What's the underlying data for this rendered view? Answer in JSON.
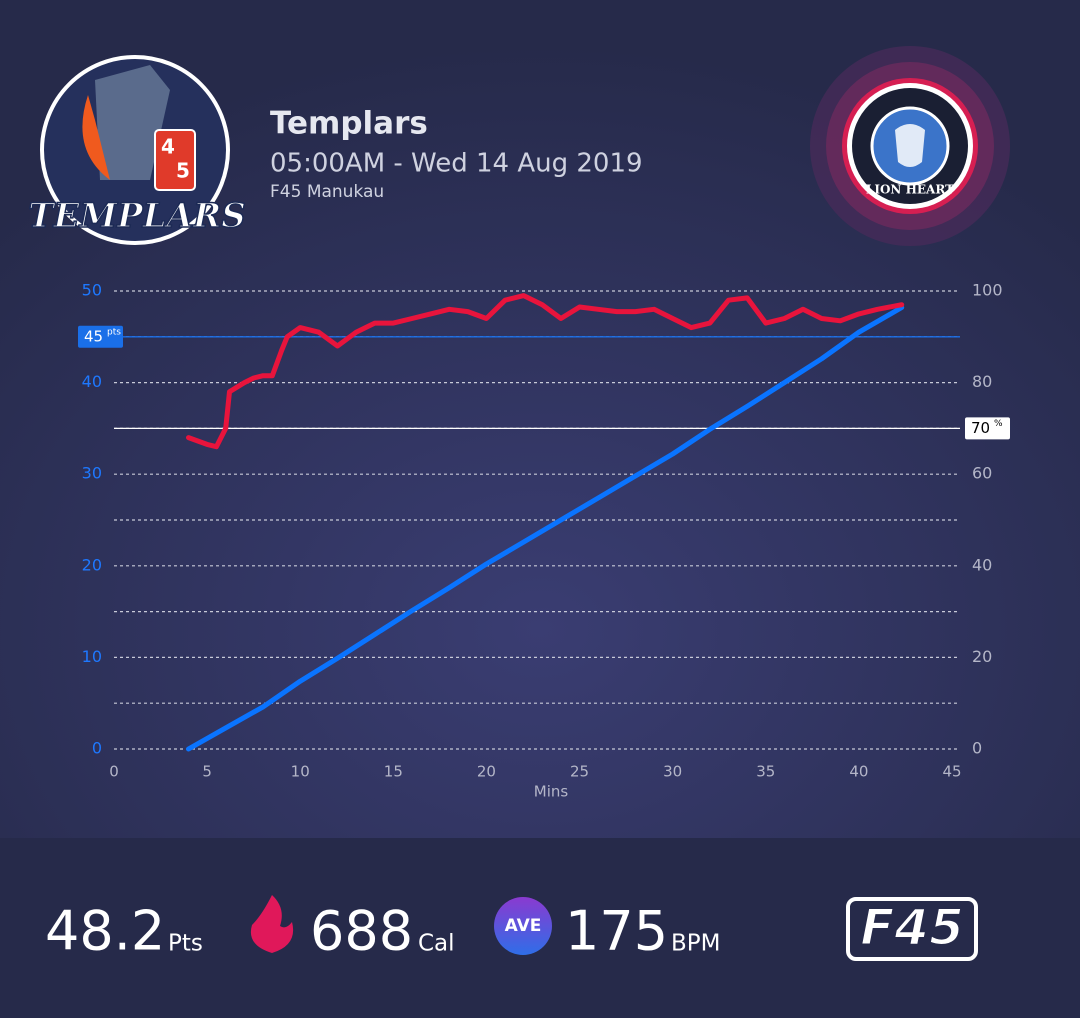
{
  "header": {
    "title": "Templars",
    "datetime": "05:00AM - Wed 14 Aug 2019",
    "location": "F45 Manukau",
    "team_logo_text": "TEMPLARS",
    "team_logo_numbers": [
      "4",
      "5"
    ],
    "opponent_logo_text": "LION HEART"
  },
  "chart_data": {
    "type": "line",
    "xlabel": "Mins",
    "xlim": [
      0,
      45
    ],
    "xticks": [
      0,
      5,
      10,
      15,
      20,
      25,
      30,
      35,
      40,
      45
    ],
    "ylim": [
      0,
      50
    ],
    "yticks": [
      0,
      10,
      20,
      30,
      40,
      50
    ],
    "y2lim": [
      0,
      100
    ],
    "y2ticks": [
      0,
      20,
      40,
      60,
      80,
      100
    ],
    "gridlines_y2": [
      0,
      10,
      20,
      30,
      40,
      50,
      60,
      70,
      80,
      90,
      100
    ],
    "reference_lines": [
      {
        "value": 45,
        "unit": "pts",
        "axis": "y",
        "color": "#1a6fe8"
      },
      {
        "value": 70,
        "unit": "%",
        "axis": "y2",
        "color": "#ffffff"
      }
    ],
    "series": [
      {
        "color": "#0a74ff",
        "x": [
          4,
          6,
          8,
          10,
          12,
          14,
          16,
          18,
          20,
          22,
          24,
          26,
          28,
          30,
          32,
          34,
          36,
          38,
          40,
          42.3
        ],
        "values": [
          0,
          2.3,
          4.6,
          7.4,
          9.9,
          12.5,
          15.1,
          17.6,
          20.2,
          22.6,
          25,
          27.4,
          29.8,
          32.2,
          34.9,
          37.4,
          40,
          42.6,
          45.5,
          48.2
        ]
      },
      {
        "color": "#e8143c",
        "axis": "y2",
        "x": [
          4,
          5,
          5.5,
          6,
          6.2,
          7,
          7.5,
          8,
          8.5,
          9,
          9.3,
          10,
          11,
          12,
          13,
          14,
          15,
          16,
          17,
          18,
          19,
          20,
          21,
          22,
          23,
          24,
          25,
          26,
          27,
          28,
          29,
          30,
          31,
          32,
          33,
          34,
          35,
          36,
          37,
          38,
          39,
          40,
          41,
          42.3
        ],
        "values": [
          68,
          66.5,
          66,
          70,
          78,
          80,
          81,
          81.5,
          81.5,
          87,
          90,
          92,
          91,
          88,
          91,
          93,
          93,
          94,
          95,
          96,
          95.5,
          94,
          98,
          99,
          97,
          94,
          96.5,
          96,
          95.5,
          95.5,
          96,
          94,
          92,
          93,
          98,
          98.5,
          93,
          94,
          96,
          94,
          93.5,
          95,
          96,
          97
        ]
      }
    ]
  },
  "stats": [
    {
      "value": 48.2,
      "unit": "Pts"
    },
    {
      "value": 688,
      "unit": "Cal"
    },
    {
      "value": 175,
      "unit": "BPM",
      "badge": "AVE"
    }
  ],
  "brand": "F45"
}
